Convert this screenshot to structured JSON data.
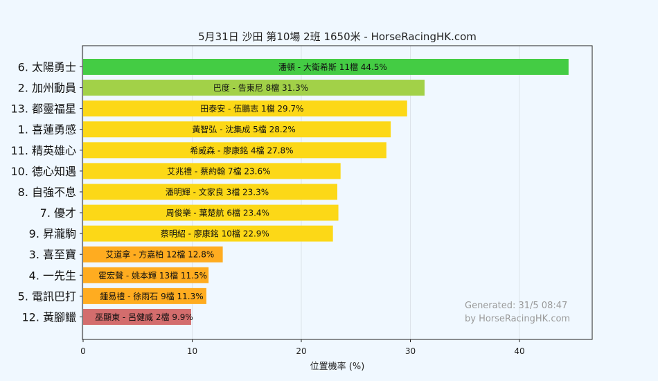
{
  "chart_data": {
    "type": "bar",
    "orientation": "horizontal",
    "title": "5月31日  沙田  第10場  2班  1650米 - HorseRacingHK.com",
    "xlabel": "位置機率 (%)",
    "ylabel": "",
    "xlim": [
      0,
      47
    ],
    "xticks": [
      0,
      10,
      20,
      30,
      40
    ],
    "grid": "vertical",
    "categories": [
      "6. 太陽勇士",
      "2. 加州動員",
      "13. 都靈福星",
      "1. 喜蓮勇感",
      "11. 精英雄心",
      "10. 德心知遇",
      "8. 自強不息",
      "7. 優才",
      "9. 昇瀧駒",
      "3. 喜至寶",
      "4. 一先生",
      "5. 電訊巴打",
      "12. 黃腳鱲"
    ],
    "bar_labels": [
      "潘頓 - 大衛希斯 11檔  44.5%",
      "巴度 - 告東尼 8檔  31.3%",
      "田泰安 - 伍鵬志 1檔  29.7%",
      "黃智弘 - 沈集成 5檔  28.2%",
      "希威森 - 廖康銘 4檔  27.8%",
      "艾兆禮 - 蔡約翰 7檔  23.6%",
      "潘明輝 - 文家良 3檔  23.3%",
      "周俊樂 - 葉楚航 6檔  23.4%",
      "蔡明紹 - 廖康銘 10檔  22.9%",
      "艾道拿 - 方嘉柏 12檔  12.8%",
      "霍宏聲 - 姚本輝 13檔  11.5%",
      "鍾易禮 - 徐雨石 9檔  11.3%",
      "巫顯東 - 呂健威 2檔  9.9%"
    ],
    "values": [
      44.5,
      31.3,
      29.7,
      28.2,
      27.8,
      23.6,
      23.3,
      23.4,
      22.9,
      12.8,
      11.5,
      11.3,
      9.9
    ],
    "colors": [
      "#44cc44",
      "#a2d148",
      "#fcd817",
      "#fcd817",
      "#fcd817",
      "#fcd817",
      "#fcd817",
      "#fcd817",
      "#fcd817",
      "#ffac20",
      "#ffac20",
      "#ffac20",
      "#d36d6d"
    ]
  },
  "watermark": {
    "line1": "Generated: 31/5 08:47",
    "line2": "by HorseRacingHK.com"
  }
}
